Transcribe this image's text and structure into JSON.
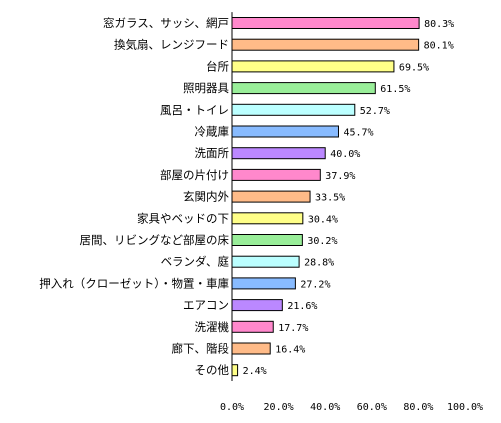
{
  "chart_data": {
    "type": "bar",
    "orientation": "horizontal",
    "categories": [
      "窓ガラス、サッシ、網戸",
      "換気扇、レンジフード",
      "台所",
      "照明器具",
      "風呂・トイレ",
      "冷蔵庫",
      "洗面所",
      "部屋の片付け",
      "玄関内外",
      "家具やベッドの下",
      "居間、リビングなど部屋の床",
      "ベランダ、庭",
      "押入れ（クローゼット）・物置・車庫",
      "エアコン",
      "洗濯機",
      "廊下、階段",
      "その他"
    ],
    "values": [
      80.3,
      80.1,
      69.5,
      61.5,
      52.7,
      45.7,
      40.0,
      37.9,
      33.5,
      30.4,
      30.2,
      28.8,
      27.2,
      21.6,
      17.7,
      16.4,
      2.4
    ],
    "value_labels": [
      "80.3%",
      "80.1%",
      "69.5%",
      "61.5%",
      "52.7%",
      "45.7%",
      "40.0%",
      "37.9%",
      "33.5%",
      "30.4%",
      "30.2%",
      "28.8%",
      "27.2%",
      "21.6%",
      "17.7%",
      "16.4%",
      "2.4%"
    ],
    "bar_colors": [
      "#ff88cc",
      "#ffbb88",
      "#ffff88",
      "#99ee99",
      "#bbffff",
      "#88bbff",
      "#bb88ff",
      "#ff88cc",
      "#ffbb88",
      "#ffff88",
      "#99ee99",
      "#bbffff",
      "#88bbff",
      "#bb88ff",
      "#ff88cc",
      "#ffbb88",
      "#ffff88"
    ],
    "x_ticks": [
      "0.0%",
      "20.0%",
      "40.0%",
      "60.0%",
      "80.0%",
      "100.0%"
    ],
    "xlim": [
      0,
      100
    ],
    "title": "",
    "xlabel": "",
    "ylabel": "",
    "grid": false,
    "legend": "none"
  }
}
